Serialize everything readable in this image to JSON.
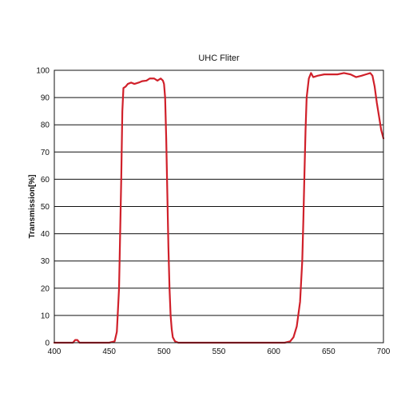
{
  "chart_data": {
    "type": "line",
    "title": "UHC Fliter",
    "xlabel": "",
    "ylabel": "Transmission[%]",
    "xlim": [
      400,
      700
    ],
    "ylim": [
      0,
      100
    ],
    "x_ticks": [
      400,
      450,
      500,
      550,
      600,
      650,
      700
    ],
    "y_ticks": [
      0,
      10,
      20,
      30,
      40,
      50,
      60,
      70,
      80,
      90,
      100
    ],
    "grid": "horizontal",
    "legend": "none",
    "series": [
      {
        "color": "#d0202a",
        "points": [
          [
            400,
            0
          ],
          [
            417,
            0
          ],
          [
            419,
            1
          ],
          [
            421,
            1
          ],
          [
            423,
            0
          ],
          [
            450,
            0
          ],
          [
            455,
            0.5
          ],
          [
            457,
            4
          ],
          [
            459,
            20
          ],
          [
            461,
            60
          ],
          [
            462,
            85
          ],
          [
            463,
            93.5
          ],
          [
            465,
            94
          ],
          [
            467,
            95
          ],
          [
            470,
            95.5
          ],
          [
            473,
            95
          ],
          [
            477,
            95.5
          ],
          [
            480,
            96
          ],
          [
            484,
            96.2
          ],
          [
            487,
            97
          ],
          [
            491,
            97
          ],
          [
            494,
            96.2
          ],
          [
            497,
            97
          ],
          [
            499,
            96.2
          ],
          [
            500,
            95
          ],
          [
            501,
            90
          ],
          [
            502,
            75
          ],
          [
            503,
            55
          ],
          [
            504,
            35
          ],
          [
            505,
            20
          ],
          [
            506,
            10
          ],
          [
            507,
            5
          ],
          [
            508,
            2
          ],
          [
            510,
            0.5
          ],
          [
            513,
            0
          ],
          [
            610,
            0
          ],
          [
            615,
            0.5
          ],
          [
            618,
            2
          ],
          [
            621,
            6
          ],
          [
            624,
            15
          ],
          [
            626,
            30
          ],
          [
            627,
            45
          ],
          [
            628,
            62
          ],
          [
            629,
            78
          ],
          [
            630,
            90
          ],
          [
            632,
            97
          ],
          [
            634,
            99
          ],
          [
            636,
            97.5
          ],
          [
            640,
            98
          ],
          [
            646,
            98.5
          ],
          [
            652,
            98.5
          ],
          [
            658,
            98.5
          ],
          [
            664,
            99
          ],
          [
            670,
            98.5
          ],
          [
            675,
            97.5
          ],
          [
            680,
            98
          ],
          [
            684,
            98.5
          ],
          [
            688,
            99
          ],
          [
            690,
            98
          ],
          [
            692,
            94
          ],
          [
            694,
            88
          ],
          [
            696,
            83
          ],
          [
            698,
            78
          ],
          [
            700,
            75
          ]
        ]
      }
    ]
  }
}
